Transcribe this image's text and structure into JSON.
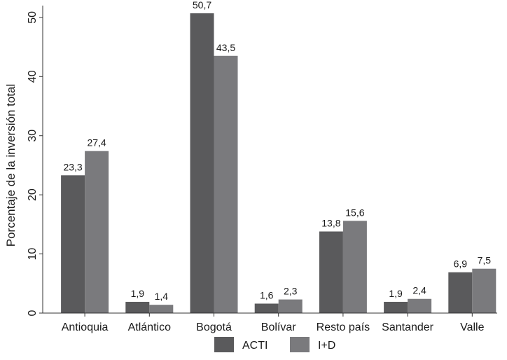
{
  "chart_data": {
    "type": "bar",
    "title": "",
    "xlabel": "",
    "ylabel": "Porcentaje de la inversión total",
    "ylim": [
      0,
      52
    ],
    "yticks": [
      "0",
      "10",
      "20",
      "30",
      "40",
      "50"
    ],
    "ytick_values": [
      0,
      10,
      20,
      30,
      40,
      50
    ],
    "categories": [
      "Antioquia",
      "Atlántico",
      "Bogotá",
      "Bolívar",
      "Resto país",
      "Santander",
      "Valle"
    ],
    "series": [
      {
        "name": "ACTI",
        "values": [
          23.3,
          1.9,
          50.7,
          1.6,
          13.8,
          1.9,
          6.9
        ],
        "labels": [
          "23,3",
          "1,9",
          "50,7",
          "1,6",
          "13,8",
          "1,9",
          "6,9"
        ],
        "color": "#5a5a5c"
      },
      {
        "name": "I+D",
        "values": [
          27.4,
          1.4,
          43.5,
          2.3,
          15.6,
          2.4,
          7.5
        ],
        "labels": [
          "27,4",
          "1,4",
          "43,5",
          "2,3",
          "15,6",
          "2,4",
          "7,5"
        ],
        "color": "#7a7a7d"
      }
    ],
    "grid": false,
    "legend_position": "bottom"
  }
}
